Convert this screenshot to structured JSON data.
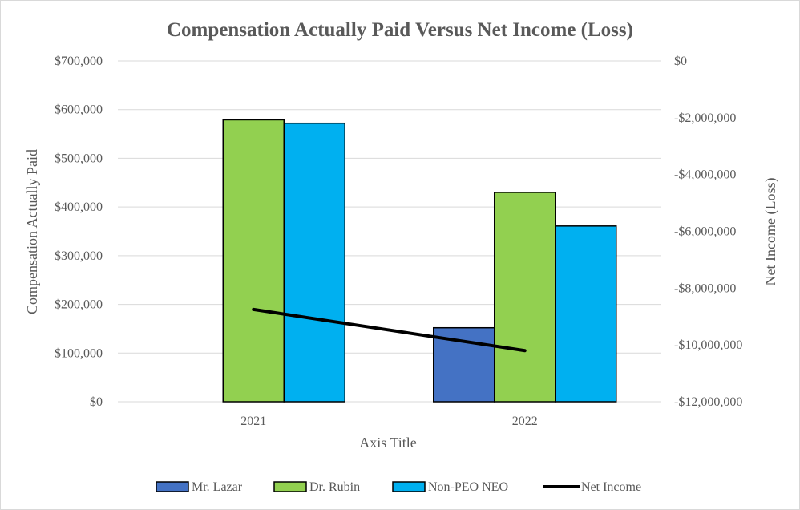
{
  "chart_data": {
    "type": "bar",
    "title": "Compensation Actually Paid Versus Net Income (Loss)",
    "xlabel": "Axis Title",
    "ylabel": "Compensation Actually Paid",
    "y2label": "Net Income (Loss)",
    "categories": [
      "2021",
      "2022"
    ],
    "ylim": [
      0,
      700000
    ],
    "y2lim": [
      -12000000,
      0
    ],
    "yticks": [
      "$0",
      "$100,000",
      "$200,000",
      "$300,000",
      "$400,000",
      "$500,000",
      "$600,000",
      "$700,000"
    ],
    "y2ticks": [
      "-$12,000,000",
      "-$10,000,000",
      "-$8,000,000",
      "-$6,000,000",
      "-$4,000,000",
      "-$2,000,000",
      "$0"
    ],
    "grid": true,
    "legend_position": "bottom",
    "series": [
      {
        "name": "Mr. Lazar",
        "kind": "bar",
        "axis": "left",
        "color": "#4472c4",
        "values": [
          0,
          152000
        ]
      },
      {
        "name": "Dr. Rubin",
        "kind": "bar",
        "axis": "left",
        "color": "#92d050",
        "values": [
          579000,
          430000
        ]
      },
      {
        "name": "Non-PEO NEO",
        "kind": "bar",
        "axis": "left",
        "color": "#00b0f0",
        "values": [
          572000,
          361000
        ]
      },
      {
        "name": "Net Income",
        "kind": "line",
        "axis": "right",
        "color": "#000000",
        "values": [
          -8750000,
          -10200000
        ]
      }
    ]
  }
}
